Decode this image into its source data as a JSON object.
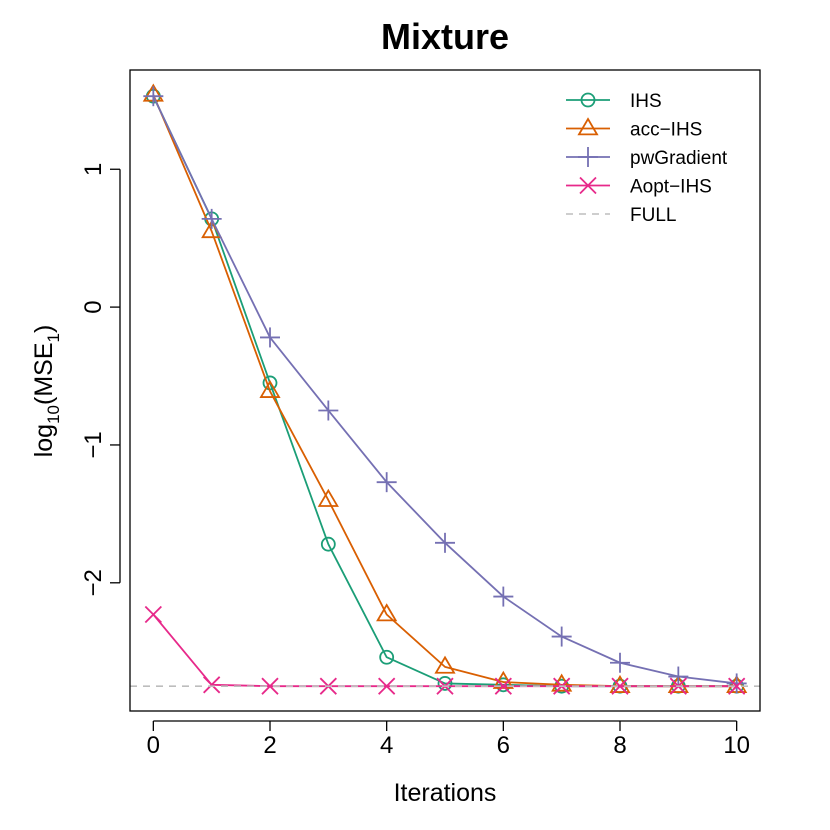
{
  "chart_data": {
    "type": "line",
    "title": "Mixture",
    "xlabel": "Iterations",
    "ylabel": {
      "base": "log",
      "sub": "10",
      "mid": "(MSE",
      "sub2": "1",
      "end": ")"
    },
    "xlim": [
      -0.4,
      10.4
    ],
    "ylim": [
      -2.93,
      1.72
    ],
    "x_ticks": [
      0,
      2,
      4,
      6,
      8,
      10
    ],
    "y_ticks": [
      -2,
      -1,
      0,
      1
    ],
    "grid": false,
    "legend": "top-right",
    "x": [
      0,
      1,
      2,
      3,
      4,
      5,
      6,
      7,
      8,
      9,
      10
    ],
    "series": [
      {
        "name": "IHS",
        "color": "#1b9e77",
        "marker": "circle",
        "linestyle": "solid",
        "values": [
          1.53,
          0.64,
          -0.55,
          -1.72,
          -2.54,
          -2.73,
          -2.74,
          -2.75,
          -2.75,
          -2.75,
          -2.75
        ]
      },
      {
        "name": "acc−IHS",
        "color": "#d95f02",
        "marker": "triangle",
        "linestyle": "solid",
        "values": [
          1.54,
          0.55,
          -0.61,
          -1.4,
          -2.23,
          -2.61,
          -2.72,
          -2.74,
          -2.75,
          -2.75,
          -2.75
        ]
      },
      {
        "name": "pwGradient",
        "color": "#7570b3",
        "marker": "plus",
        "linestyle": "solid",
        "values": [
          1.53,
          0.64,
          -0.22,
          -0.75,
          -1.27,
          -1.71,
          -2.1,
          -2.39,
          -2.58,
          -2.68,
          -2.73
        ]
      },
      {
        "name": "Aopt−IHS",
        "color": "#e7298a",
        "marker": "cross",
        "linestyle": "solid",
        "values": [
          -2.23,
          -2.74,
          -2.75,
          -2.75,
          -2.75,
          -2.75,
          -2.75,
          -2.75,
          -2.75,
          -2.75,
          -2.75
        ]
      },
      {
        "name": "FULL",
        "color": "#bdbdbd",
        "marker": "none",
        "linestyle": "dashed",
        "hline": -2.75
      }
    ]
  }
}
